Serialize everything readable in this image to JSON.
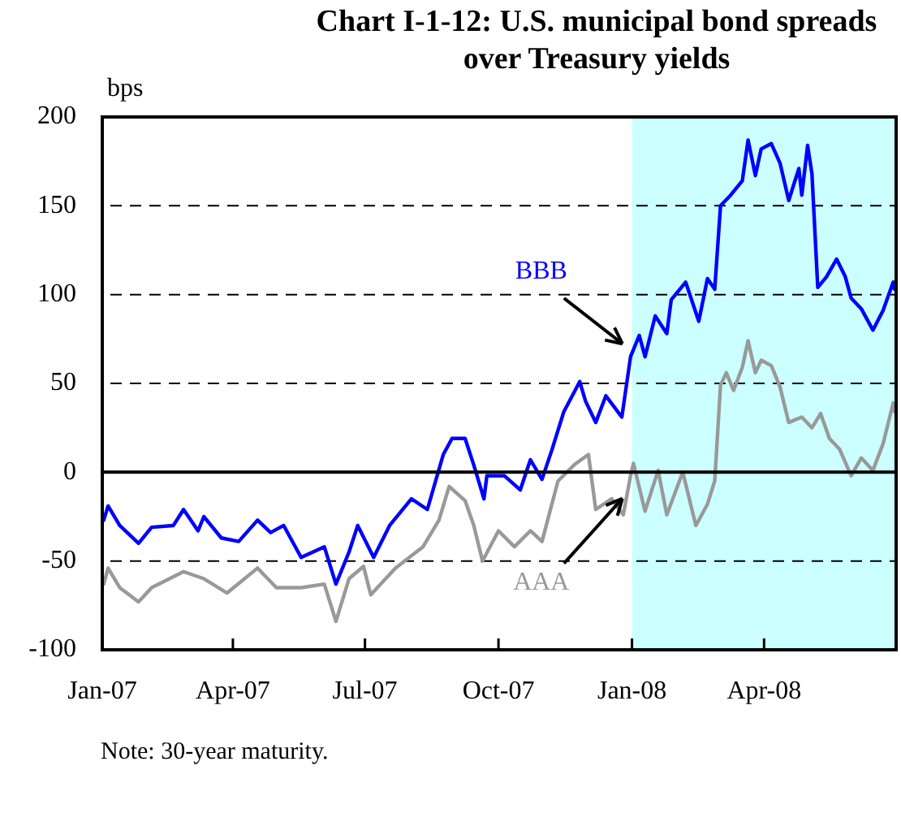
{
  "chart_data": {
    "type": "line",
    "title": "Chart I-1-12: U.S. municipal bond spreads over Treasury yields",
    "ylabel": "bps",
    "xlim": [
      "2007-01-01",
      "2008-07-01"
    ],
    "xticks": [
      {
        "value": "2007-01-01",
        "label": "Jan-07"
      },
      {
        "value": "2007-04-01",
        "label": "Apr-07"
      },
      {
        "value": "2007-07-01",
        "label": "Jul-07"
      },
      {
        "value": "2007-10-01",
        "label": "Oct-07"
      },
      {
        "value": "2008-01-01",
        "label": "Jan-08"
      },
      {
        "value": "2008-04-01",
        "label": "Apr-08"
      }
    ],
    "ylim": [
      -100,
      200
    ],
    "yticks": [
      -100,
      -50,
      0,
      50,
      100,
      150,
      200
    ],
    "grid": "y",
    "legend": false,
    "marker": "none",
    "line_style": "solid",
    "ref_lines": [
      {
        "axis": "y",
        "value": 0,
        "color": "#000000"
      }
    ],
    "bands": [
      {
        "axis": "x",
        "from": "2008-01-01",
        "to": "2008-07-01",
        "color": "#ccffff"
      }
    ],
    "annotations": [
      "Note: 30-year maturity."
    ],
    "series": [
      {
        "name": "BBB",
        "color": "#0000ff",
        "x": [
          "2007-01-02",
          "2007-01-05",
          "2007-01-13",
          "2007-01-26",
          "2007-02-04",
          "2007-02-19",
          "2007-02-26",
          "2007-03-08",
          "2007-03-12",
          "2007-03-24",
          "2007-04-05",
          "2007-04-18",
          "2007-04-27",
          "2007-05-06",
          "2007-05-18",
          "2007-06-03",
          "2007-06-11",
          "2007-06-20",
          "2007-06-26",
          "2007-07-07",
          "2007-07-18",
          "2007-08-02",
          "2007-08-13",
          "2007-08-24",
          "2007-08-30",
          "2007-09-08",
          "2007-09-14",
          "2007-09-21",
          "2007-09-23",
          "2007-10-05",
          "2007-10-16",
          "2007-10-23",
          "2007-10-31",
          "2007-11-07",
          "2007-11-15",
          "2007-11-26",
          "2007-11-30",
          "2007-12-07",
          "2007-12-14",
          "2007-12-25",
          "2007-12-31",
          "2008-01-06",
          "2008-01-10",
          "2008-01-17",
          "2008-01-25",
          "2008-01-28",
          "2008-02-07",
          "2008-02-16",
          "2008-02-22",
          "2008-02-27",
          "2008-03-02",
          "2008-03-09",
          "2008-03-17",
          "2008-03-21",
          "2008-03-26",
          "2008-03-30",
          "2008-04-06",
          "2008-04-12",
          "2008-04-18",
          "2008-04-25",
          "2008-04-27",
          "2008-05-01",
          "2008-05-04",
          "2008-05-08",
          "2008-05-14",
          "2008-05-21",
          "2008-05-27",
          "2008-05-31",
          "2008-06-07",
          "2008-06-15",
          "2008-06-22",
          "2008-06-29",
          "2008-06-30"
        ],
        "values": [
          -27,
          -19,
          -30,
          -40,
          -31,
          -30,
          -21,
          -33,
          -25,
          -37,
          -39,
          -27,
          -34,
          -30,
          -48,
          -42,
          -63,
          -45,
          -30,
          -48,
          -30,
          -15,
          -21,
          10,
          19,
          19,
          4,
          -15,
          -2,
          -2,
          -10,
          7,
          -4,
          13,
          34,
          51,
          40,
          28,
          43,
          31,
          65,
          77,
          65,
          88,
          78,
          97,
          107,
          85,
          109,
          103,
          150,
          156,
          164,
          187,
          167,
          182,
          185,
          174,
          153,
          171,
          156,
          184,
          168,
          104,
          110,
          120,
          110,
          98,
          92,
          80,
          91,
          107,
          103
        ]
      },
      {
        "name": "AAA",
        "color": "#999999",
        "x": [
          "2007-01-02",
          "2007-01-05",
          "2007-01-13",
          "2007-01-26",
          "2007-02-04",
          "2007-02-26",
          "2007-03-12",
          "2007-03-28",
          "2007-04-18",
          "2007-05-01",
          "2007-05-18",
          "2007-06-03",
          "2007-06-11",
          "2007-06-20",
          "2007-06-30",
          "2007-07-05",
          "2007-07-22",
          "2007-08-10",
          "2007-08-21",
          "2007-08-28",
          "2007-09-08",
          "2007-09-14",
          "2007-09-20",
          "2007-10-01",
          "2007-10-12",
          "2007-10-23",
          "2007-10-31",
          "2007-11-11",
          "2007-11-22",
          "2007-12-02",
          "2007-12-07",
          "2007-12-18",
          "2007-12-26",
          "2007-12-31",
          "2008-01-02",
          "2008-01-10",
          "2008-01-19",
          "2008-01-25",
          "2008-02-05",
          "2008-02-14",
          "2008-02-22",
          "2008-02-27",
          "2008-03-02",
          "2008-03-06",
          "2008-03-11",
          "2008-03-17",
          "2008-03-21",
          "2008-03-26",
          "2008-03-30",
          "2008-04-06",
          "2008-04-12",
          "2008-04-18",
          "2008-04-27",
          "2008-05-04",
          "2008-05-10",
          "2008-05-16",
          "2008-05-23",
          "2008-05-31",
          "2008-06-07",
          "2008-06-15",
          "2008-06-22",
          "2008-06-29",
          "2008-06-30"
        ],
        "values": [
          -63,
          -54,
          -65,
          -73,
          -65,
          -56,
          -60,
          -68,
          -54,
          -65,
          -65,
          -63,
          -84,
          -60,
          -53,
          -69,
          -54,
          -42,
          -27,
          -8,
          -16,
          -30,
          -50,
          -33,
          -42,
          -33,
          -39,
          -5,
          4,
          10,
          -21,
          -15,
          -24,
          -2,
          5,
          -22,
          1,
          -24,
          0,
          -30,
          -18,
          -5,
          49,
          56,
          46,
          59,
          74,
          56,
          63,
          60,
          48,
          28,
          31,
          25,
          33,
          19,
          13,
          -2,
          8,
          1,
          16,
          39,
          34
        ]
      }
    ]
  }
}
